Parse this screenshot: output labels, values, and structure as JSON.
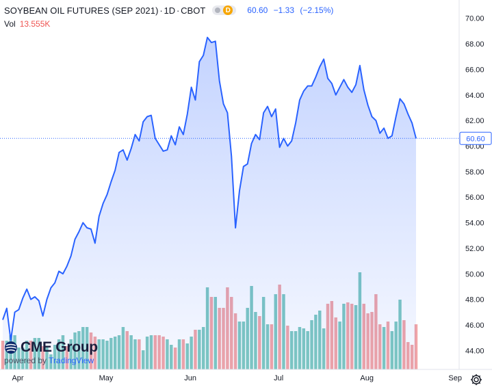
{
  "header": {
    "symbol_title": "SOYBEAN OIL FUTURES (SEP 2021)",
    "interval": "1D",
    "exchange": "CBOT",
    "market_status_letter": "D",
    "last_price": "60.60",
    "change": "−1.33",
    "change_pct": "(−2.15%)",
    "volume_label": "Vol",
    "volume_value": "13.555K"
  },
  "branding": {
    "logo_name": "CME Group",
    "powered_by": "powered by",
    "provider": "TradingView"
  },
  "colors": {
    "line": "#2962ff",
    "area_top": "rgba(41,98,255,0.28)",
    "area_bottom": "rgba(41,98,255,0.04)",
    "volume_up": "#7fc9c0",
    "volume_down": "#f2a5a6",
    "price_tag_bg": "#ffffff",
    "price_tag_border": "#2962ff"
  },
  "chart_data": {
    "type": "area",
    "title": "SOYBEAN OIL FUTURES (SEP 2021)",
    "x_ticks": [
      "Apr",
      "May",
      "Jun",
      "Jul",
      "Aug",
      "Sep"
    ],
    "y_ticks": [
      "44.00",
      "46.00",
      "48.00",
      "50.00",
      "52.00",
      "54.00",
      "56.00",
      "58.00",
      "60.00",
      "62.00",
      "64.00",
      "66.00",
      "68.00",
      "70.00"
    ],
    "ylim": [
      43.0,
      71.0
    ],
    "grid": false,
    "current_price_label": "60.60",
    "series": [
      {
        "name": "Price",
        "values": [
          46.4,
          47.3,
          44.8,
          47.0,
          47.2,
          48.1,
          48.8,
          48.0,
          48.2,
          47.9,
          46.7,
          48.0,
          48.9,
          49.3,
          50.2,
          50.0,
          50.6,
          51.4,
          52.7,
          53.3,
          54.0,
          53.6,
          53.5,
          52.4,
          54.5,
          55.5,
          56.2,
          57.2,
          58.1,
          59.5,
          59.7,
          58.9,
          59.8,
          60.9,
          60.4,
          61.9,
          62.3,
          62.4,
          60.6,
          60.1,
          59.6,
          59.7,
          60.8,
          60.1,
          61.5,
          60.9,
          62.5,
          64.6,
          63.6,
          66.6,
          67.1,
          68.5,
          68.1,
          68.2,
          65.1,
          63.3,
          62.6,
          59.2,
          53.6,
          56.5,
          58.4,
          58.6,
          60.2,
          60.9,
          60.5,
          62.6,
          63.1,
          62.3,
          62.9,
          59.9,
          60.6,
          60.0,
          60.4,
          61.8,
          63.6,
          64.3,
          64.7,
          64.7,
          65.4,
          66.2,
          66.8,
          65.3,
          64.9,
          64.0,
          64.6,
          65.2,
          64.6,
          64.2,
          64.8,
          66.3,
          64.4,
          63.2,
          62.3,
          62.0,
          61.0,
          61.4,
          60.6,
          60.8,
          62.3,
          63.7,
          63.3,
          62.5,
          61.8,
          60.6
        ]
      },
      {
        "name": "Volume",
        "values": [
          0.21,
          0.21,
          0.25,
          0.25,
          0.16,
          0.16,
          0.21,
          0.21,
          0.23,
          0.23,
          0.17,
          0.17,
          0.11,
          0.18,
          0.22,
          0.25,
          0.17,
          0.22,
          0.27,
          0.28,
          0.31,
          0.31,
          0.27,
          0.24,
          0.22,
          0.22,
          0.21,
          0.23,
          0.24,
          0.25,
          0.31,
          0.28,
          0.25,
          0.22,
          0.22,
          0.14,
          0.24,
          0.25,
          0.25,
          0.25,
          0.24,
          0.22,
          0.18,
          0.16,
          0.22,
          0.22,
          0.19,
          0.24,
          0.29,
          0.29,
          0.31,
          0.6,
          0.53,
          0.53,
          0.45,
          0.45,
          0.6,
          0.53,
          0.41,
          0.35,
          0.35,
          0.45,
          0.61,
          0.42,
          0.39,
          0.53,
          0.33,
          0.33,
          0.55,
          0.62,
          0.55,
          0.32,
          0.28,
          0.28,
          0.31,
          0.3,
          0.28,
          0.36,
          0.4,
          0.43,
          0.3,
          0.48,
          0.5,
          0.38,
          0.35,
          0.48,
          0.49,
          0.48,
          0.47,
          0.71,
          0.48,
          0.41,
          0.42,
          0.55,
          0.33,
          0.31,
          0.35,
          0.28,
          0.35,
          0.51,
          0.36,
          0.2,
          0.18,
          0.33
        ],
        "up": [
          false,
          true,
          true,
          true,
          true,
          true,
          true,
          false,
          true,
          true,
          false,
          true,
          true,
          true,
          true,
          true,
          false,
          true,
          true,
          true,
          true,
          true,
          false,
          false,
          true,
          true,
          true,
          true,
          true,
          true,
          true,
          false,
          true,
          true,
          false,
          true,
          true,
          true,
          false,
          false,
          false,
          true,
          true,
          false,
          true,
          false,
          true,
          true,
          false,
          true,
          true,
          true,
          false,
          true,
          false,
          false,
          false,
          false,
          false,
          true,
          true,
          true,
          true,
          true,
          false,
          true,
          true,
          false,
          true,
          false,
          true,
          false,
          true,
          true,
          true,
          true,
          true,
          true,
          true,
          true,
          true,
          false,
          false,
          false,
          true,
          true,
          false,
          false,
          true,
          true,
          false,
          false,
          false,
          false,
          false,
          true,
          false,
          true,
          true,
          true,
          false,
          false,
          false,
          false
        ]
      }
    ]
  }
}
